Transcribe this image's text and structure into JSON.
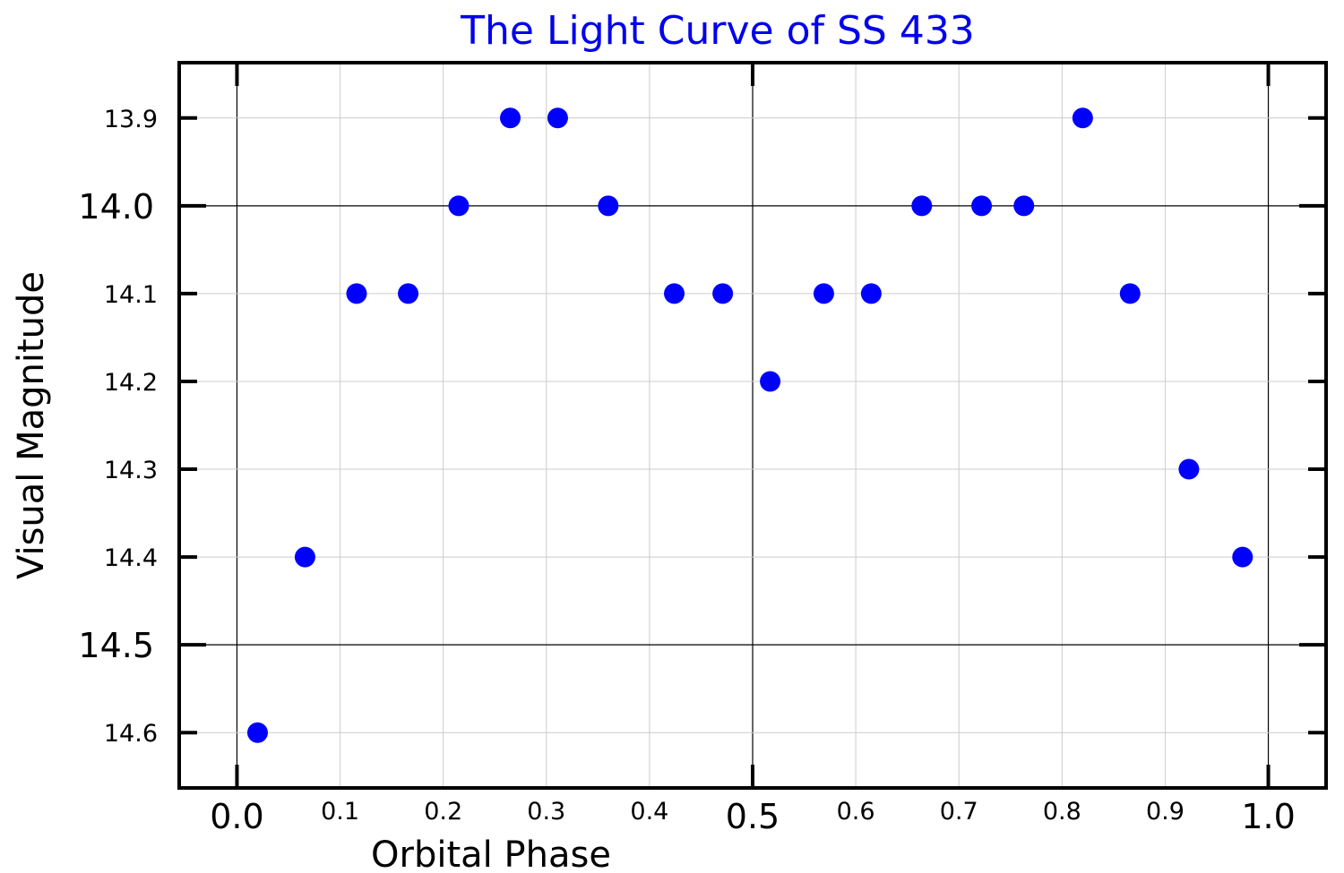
{
  "chart_data": {
    "type": "scatter",
    "title": "The Light Curve of SS 433",
    "xlabel": "Orbital Phase",
    "ylabel": "Visual Magnitude",
    "xlim": [
      -0.056,
      1.056
    ],
    "ylim": [
      14.663,
      13.837
    ],
    "y_inverted": true,
    "grid": true,
    "x_ticks": [
      {
        "value": 0.0,
        "label": "0.0",
        "major": true
      },
      {
        "value": 0.1,
        "label": "0.1",
        "major": false
      },
      {
        "value": 0.2,
        "label": "0.2",
        "major": false
      },
      {
        "value": 0.3,
        "label": "0.3",
        "major": false
      },
      {
        "value": 0.4,
        "label": "0.4",
        "major": false
      },
      {
        "value": 0.5,
        "label": "0.5",
        "major": true
      },
      {
        "value": 0.6,
        "label": "0.6",
        "major": false
      },
      {
        "value": 0.7,
        "label": "0.7",
        "major": false
      },
      {
        "value": 0.8,
        "label": "0.8",
        "major": false
      },
      {
        "value": 0.9,
        "label": "0.9",
        "major": false
      },
      {
        "value": 1.0,
        "label": "1.0",
        "major": true
      }
    ],
    "y_ticks": [
      {
        "value": 13.9,
        "label": "13.9",
        "major": false
      },
      {
        "value": 14.0,
        "label": "14.0",
        "major": true
      },
      {
        "value": 14.1,
        "label": "14.1",
        "major": false
      },
      {
        "value": 14.2,
        "label": "14.2",
        "major": false
      },
      {
        "value": 14.3,
        "label": "14.3",
        "major": false
      },
      {
        "value": 14.4,
        "label": "14.4",
        "major": false
      },
      {
        "value": 14.5,
        "label": "14.5",
        "major": true
      },
      {
        "value": 14.6,
        "label": "14.6",
        "major": false
      }
    ],
    "series": [
      {
        "color": "#0000ff",
        "points": [
          {
            "x": 0.02,
            "y": 14.6
          },
          {
            "x": 0.066,
            "y": 14.4
          },
          {
            "x": 0.116,
            "y": 14.1
          },
          {
            "x": 0.166,
            "y": 14.1
          },
          {
            "x": 0.215,
            "y": 14.0
          },
          {
            "x": 0.265,
            "y": 13.9
          },
          {
            "x": 0.311,
            "y": 13.9
          },
          {
            "x": 0.36,
            "y": 14.0
          },
          {
            "x": 0.424,
            "y": 14.1
          },
          {
            "x": 0.471,
            "y": 14.1
          },
          {
            "x": 0.517,
            "y": 14.2
          },
          {
            "x": 0.569,
            "y": 14.1
          },
          {
            "x": 0.615,
            "y": 14.1
          },
          {
            "x": 0.664,
            "y": 14.0
          },
          {
            "x": 0.722,
            "y": 14.0
          },
          {
            "x": 0.763,
            "y": 14.0
          },
          {
            "x": 0.82,
            "y": 13.9
          },
          {
            "x": 0.866,
            "y": 14.1
          },
          {
            "x": 0.923,
            "y": 14.3
          },
          {
            "x": 0.975,
            "y": 14.4
          }
        ]
      }
    ]
  }
}
